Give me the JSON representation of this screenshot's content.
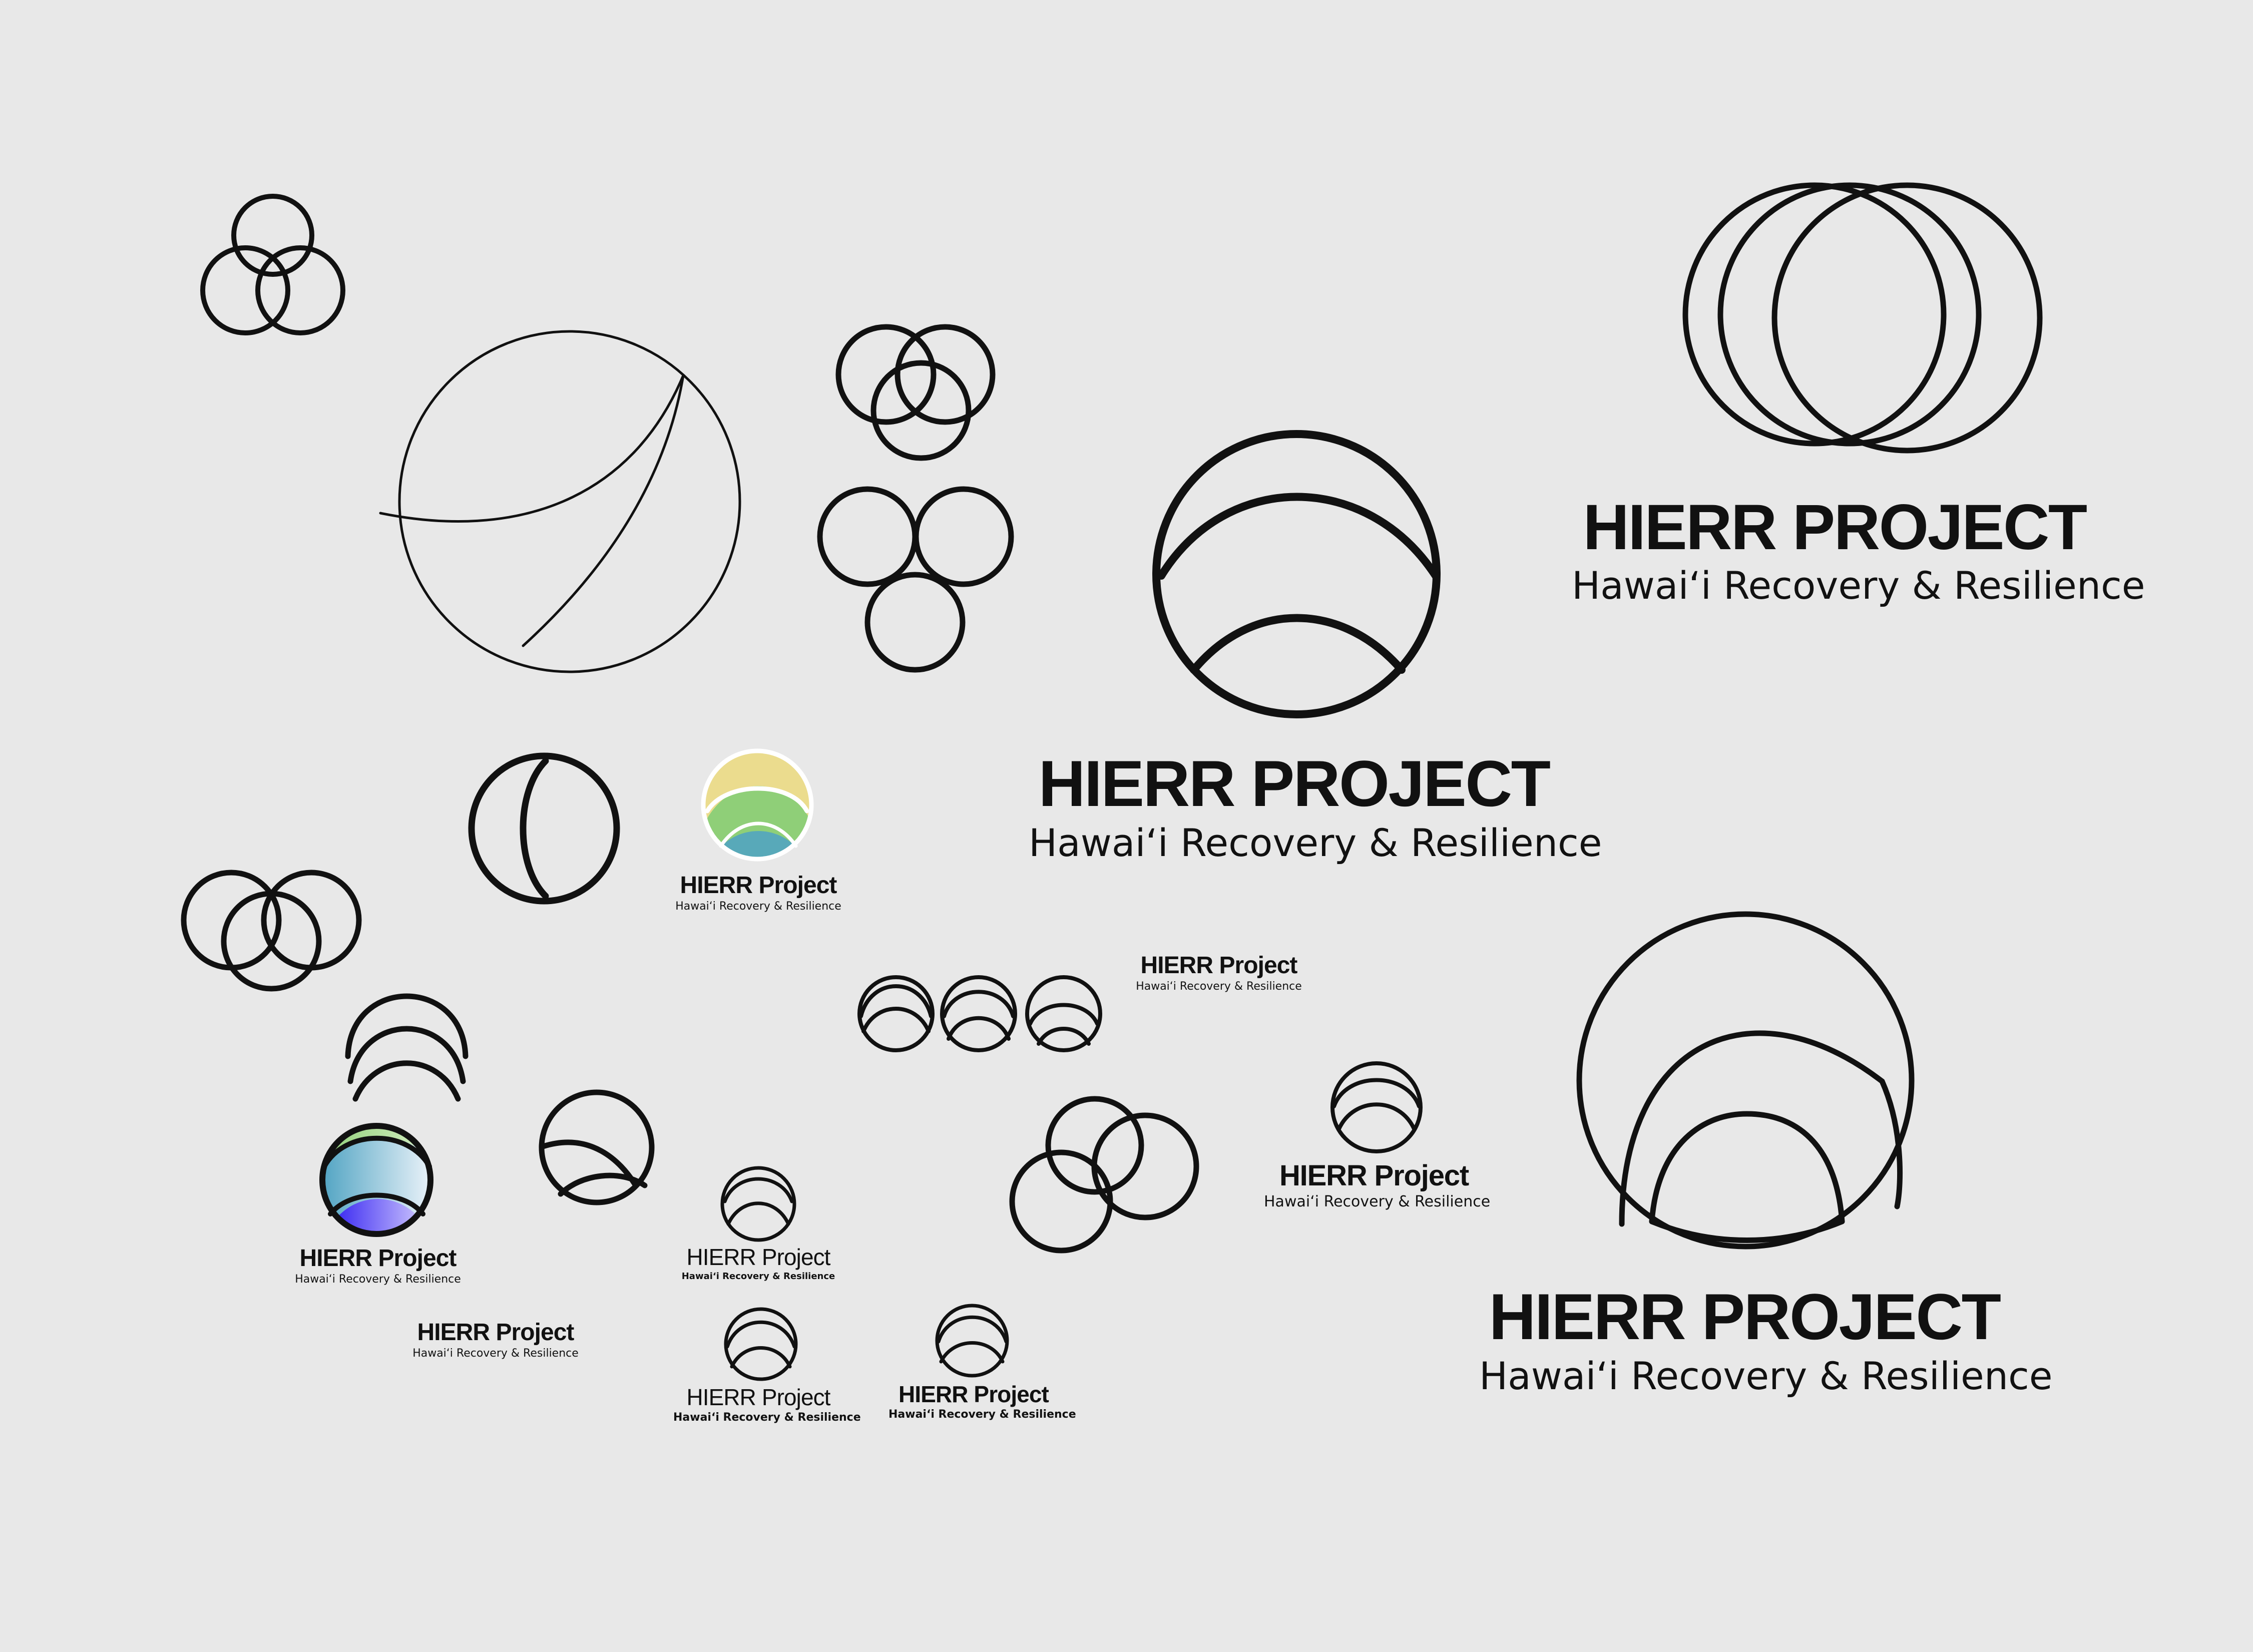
{
  "canvas": {
    "background": "#e8e8e8",
    "ink": "#111111"
  },
  "wordmarks": {
    "upper_title": "HIERR PROJECT",
    "upper_subtitle": "Hawai‘i Recovery & Resilience",
    "lower_title": "HIERR Project",
    "lower_subtitle": "Hawai‘i Recovery & Resilience"
  },
  "palette": {
    "warm_yellow": "#ebdc8e",
    "leaf_green": "#8fcf78",
    "sea_teal": "#58a9b9",
    "sky_blue": "#5aa7c8",
    "ice_white": "#f0f5fb",
    "violet": "#3a26f2"
  }
}
